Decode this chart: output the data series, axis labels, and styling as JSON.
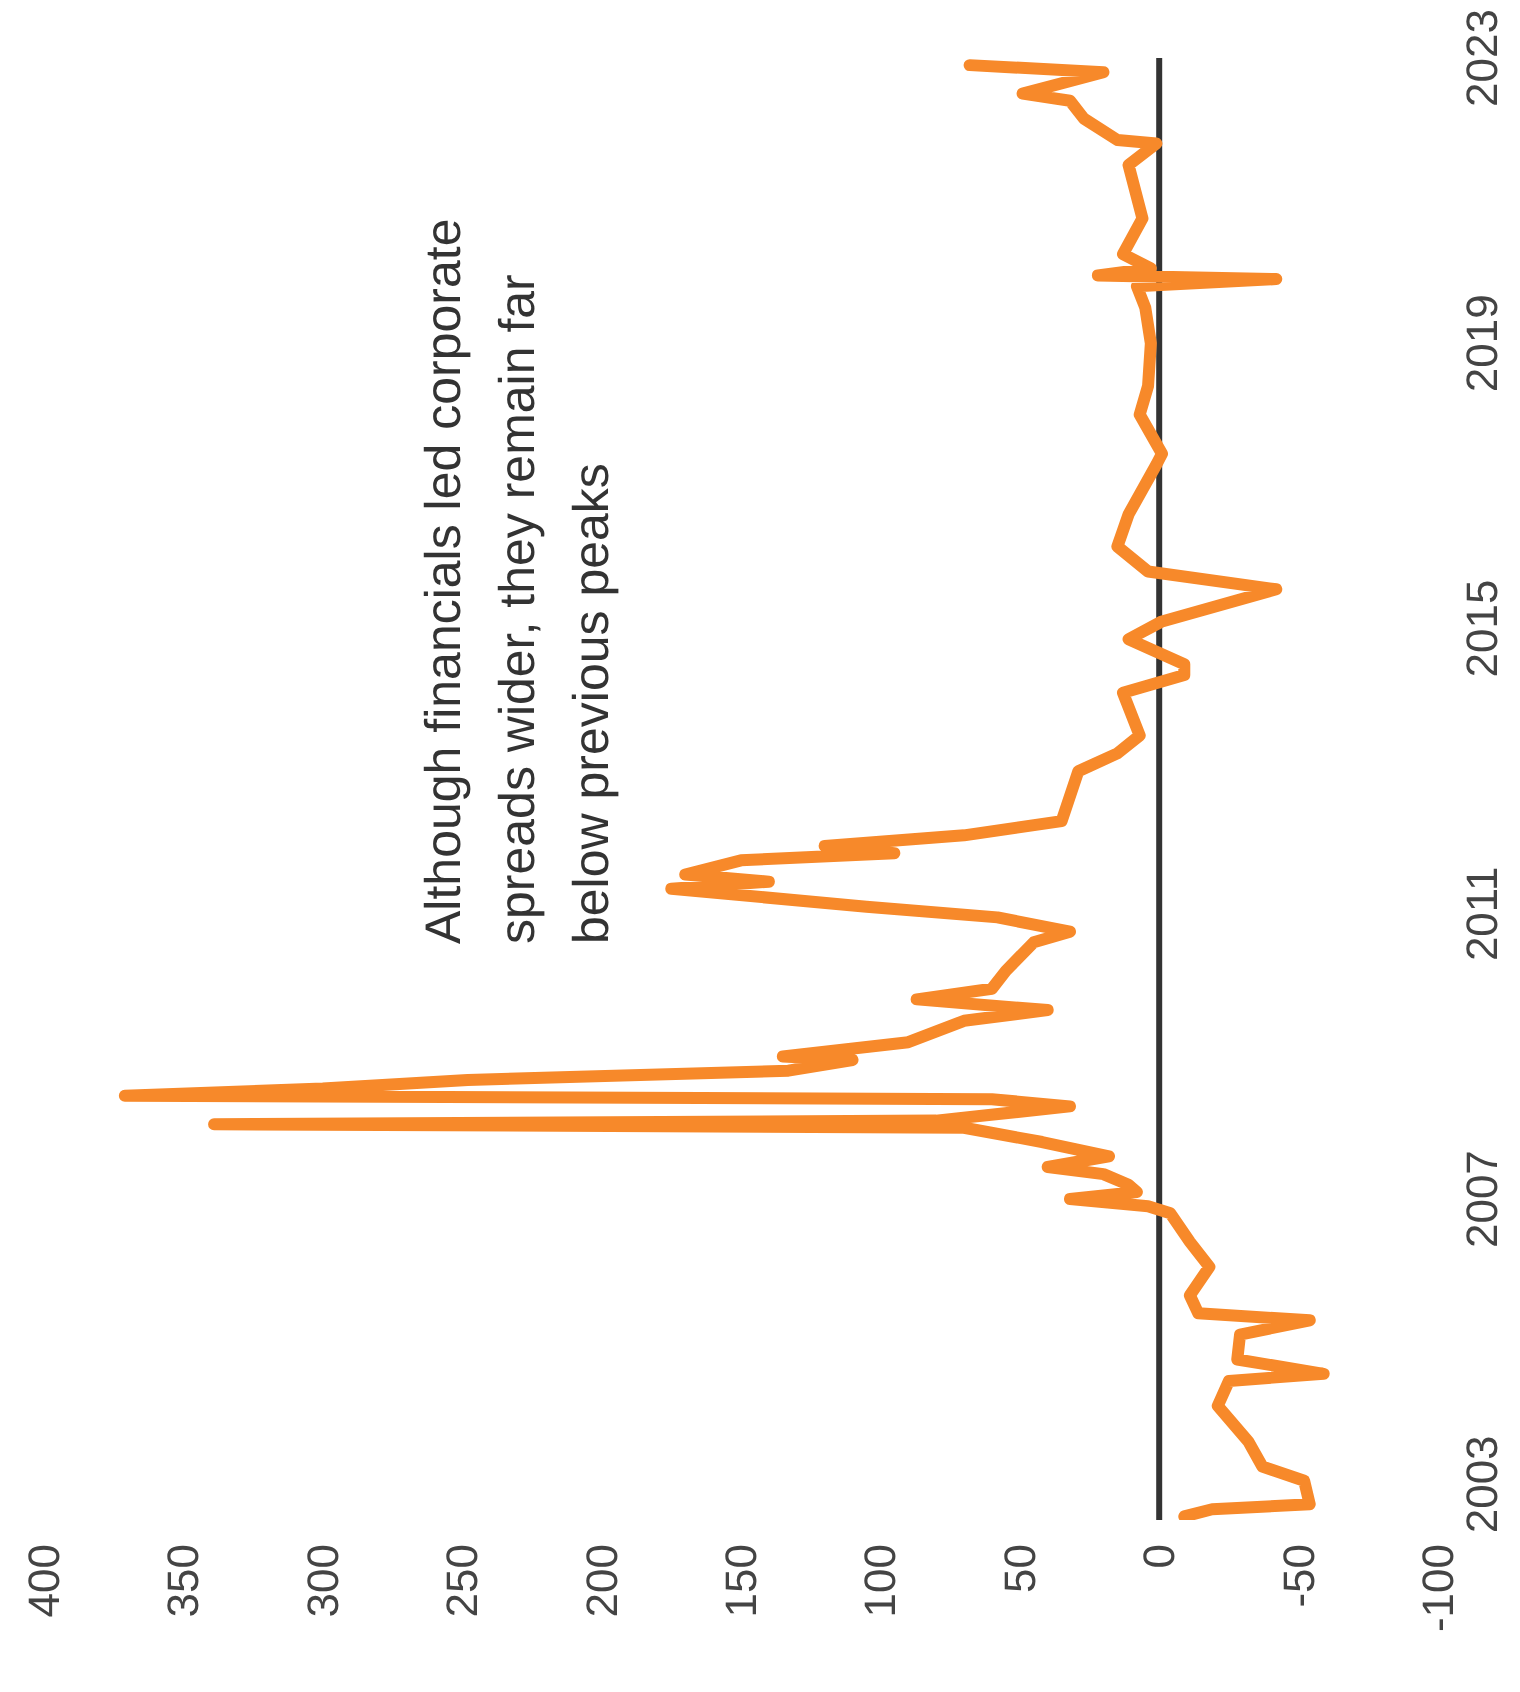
{
  "chart_data": {
    "type": "line",
    "annotations": [
      "Although financials led corporate\nspreads wider, they remain far\nbelow previous peaks"
    ],
    "series": [
      {
        "color": "#f7892a",
        "x": [
          -9,
          -19,
          -54,
          -52,
          -37,
          -32,
          -21,
          -25,
          -59,
          -28,
          -29,
          -54,
          -14,
          -11,
          -18,
          -11,
          -4,
          4,
          32,
          8,
          11,
          20,
          40,
          18,
          42,
          70,
          339,
          80,
          32,
          60,
          371,
          300,
          248,
          133,
          110,
          135,
          90,
          70,
          40,
          87,
          60,
          55,
          45,
          32,
          58,
          105,
          175,
          140,
          170,
          150,
          95,
          120,
          70,
          35,
          29,
          15,
          7,
          13,
          -9,
          -9,
          11,
          -1,
          -42,
          4,
          15,
          11,
          1,
          -1,
          7,
          4,
          3,
          5,
          8,
          -42,
          22,
          3,
          13,
          6,
          11,
          1,
          15,
          27,
          32,
          49,
          20,
          68
        ],
        "values": [
          2002.55,
          2002.65,
          2002.72,
          2003.05,
          2003.25,
          2003.6,
          2004.1,
          2004.45,
          2004.55,
          2004.75,
          2005.1,
          2005.3,
          2005.4,
          2005.65,
          2006.05,
          2006.4,
          2006.8,
          2006.9,
          2007.0,
          2007.1,
          2007.2,
          2007.35,
          2007.45,
          2007.6,
          2007.8,
          2008.0,
          2008.05,
          2008.1,
          2008.3,
          2008.4,
          2008.45,
          2008.55,
          2008.67,
          2008.8,
          2008.95,
          2009.0,
          2009.2,
          2009.5,
          2009.65,
          2009.8,
          2009.95,
          2010.2,
          2010.6,
          2010.75,
          2010.95,
          2011.1,
          2011.35,
          2011.45,
          2011.55,
          2011.75,
          2011.85,
          2011.95,
          2012.1,
          2012.3,
          2013.0,
          2013.25,
          2013.5,
          2014.1,
          2014.35,
          2014.5,
          2014.85,
          2015.1,
          2015.55,
          2015.8,
          2016.15,
          2016.6,
          2017.3,
          2017.45,
          2018.0,
          2018.4,
          2019.0,
          2019.5,
          2019.8,
          2019.9,
          2019.95,
          2020.05,
          2020.25,
          2020.75,
          2021.5,
          2021.8,
          2021.85,
          2022.15,
          2022.4,
          2022.5,
          2022.8,
          2022.9
        ]
      }
    ],
    "xlim": [
      400,
      -100
    ],
    "xticks": [
      400,
      350,
      300,
      250,
      200,
      150,
      100,
      50,
      0,
      -50,
      -100
    ],
    "ylim": [
      2002.5,
      2023
    ],
    "yticks": [
      2003,
      2007,
      2011,
      2015,
      2019,
      2023
    ],
    "ref_lines": [
      {
        "axis": "x",
        "value": 0,
        "color": "#333333"
      }
    ],
    "grid": false,
    "legend": false,
    "marker": "none",
    "line_style": "solid"
  }
}
